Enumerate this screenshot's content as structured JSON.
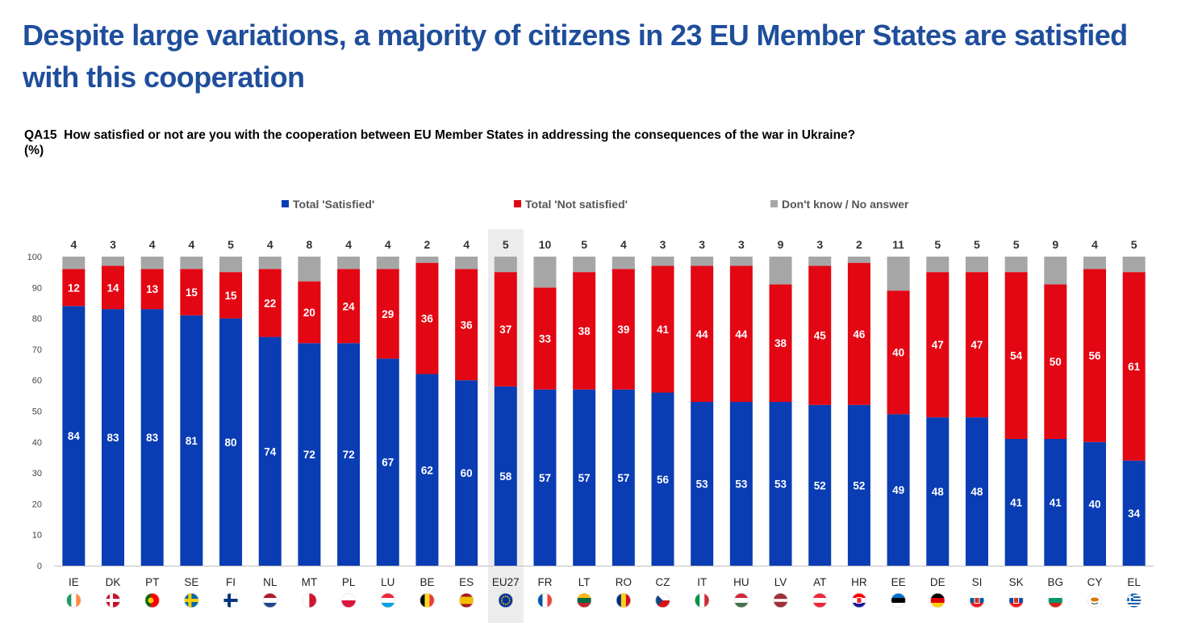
{
  "title": "Despite large variations, a majority of citizens in 23 EU Member States are satisfied with this cooperation",
  "question": {
    "code": "QA15",
    "text": "How satisfied or not are you with the cooperation between EU Member States in addressing the consequences of the war in Ukraine?",
    "unit": "(%)"
  },
  "chart_data": {
    "type": "bar",
    "stacked": true,
    "categories": [
      "IE",
      "DK",
      "PT",
      "SE",
      "FI",
      "NL",
      "MT",
      "PL",
      "LU",
      "BE",
      "ES",
      "EU27",
      "FR",
      "LT",
      "RO",
      "CZ",
      "IT",
      "HU",
      "LV",
      "AT",
      "HR",
      "EE",
      "DE",
      "SI",
      "SK",
      "BG",
      "CY",
      "EL"
    ],
    "highlight_category": "EU27",
    "series": [
      {
        "name": "Total 'Satisfied'",
        "color": "#0a3cb4",
        "values": [
          84,
          83,
          83,
          81,
          80,
          74,
          72,
          72,
          67,
          62,
          60,
          58,
          57,
          57,
          57,
          56,
          53,
          53,
          53,
          52,
          52,
          49,
          48,
          48,
          41,
          41,
          40,
          34
        ]
      },
      {
        "name": "Total 'Not satisfied'",
        "color": "#e30613",
        "values": [
          12,
          14,
          13,
          15,
          15,
          22,
          20,
          24,
          29,
          36,
          36,
          37,
          33,
          38,
          39,
          41,
          44,
          44,
          38,
          45,
          46,
          40,
          47,
          47,
          54,
          50,
          56,
          61
        ]
      },
      {
        "name": "Don't know / No answer",
        "color": "#a6a6a6",
        "values": [
          4,
          3,
          4,
          4,
          5,
          4,
          8,
          4,
          4,
          2,
          4,
          5,
          10,
          5,
          4,
          3,
          3,
          3,
          9,
          3,
          2,
          11,
          5,
          5,
          5,
          9,
          4,
          5
        ]
      }
    ],
    "ylim": [
      0,
      100
    ],
    "yticks": [
      0,
      10,
      20,
      30,
      40,
      50,
      60,
      70,
      80,
      90,
      100
    ],
    "legend_position": "top",
    "grid": false,
    "flag_icons": [
      "flag-ie-icon",
      "flag-dk-icon",
      "flag-pt-icon",
      "flag-se-icon",
      "flag-fi-icon",
      "flag-nl-icon",
      "flag-mt-icon",
      "flag-pl-icon",
      "flag-lu-icon",
      "flag-be-icon",
      "flag-es-icon",
      "flag-eu-icon",
      "flag-fr-icon",
      "flag-lt-icon",
      "flag-ro-icon",
      "flag-cz-icon",
      "flag-it-icon",
      "flag-hu-icon",
      "flag-lv-icon",
      "flag-at-icon",
      "flag-hr-icon",
      "flag-ee-icon",
      "flag-de-icon",
      "flag-si-icon",
      "flag-sk-icon",
      "flag-bg-icon",
      "flag-cy-icon",
      "flag-el-icon"
    ]
  }
}
